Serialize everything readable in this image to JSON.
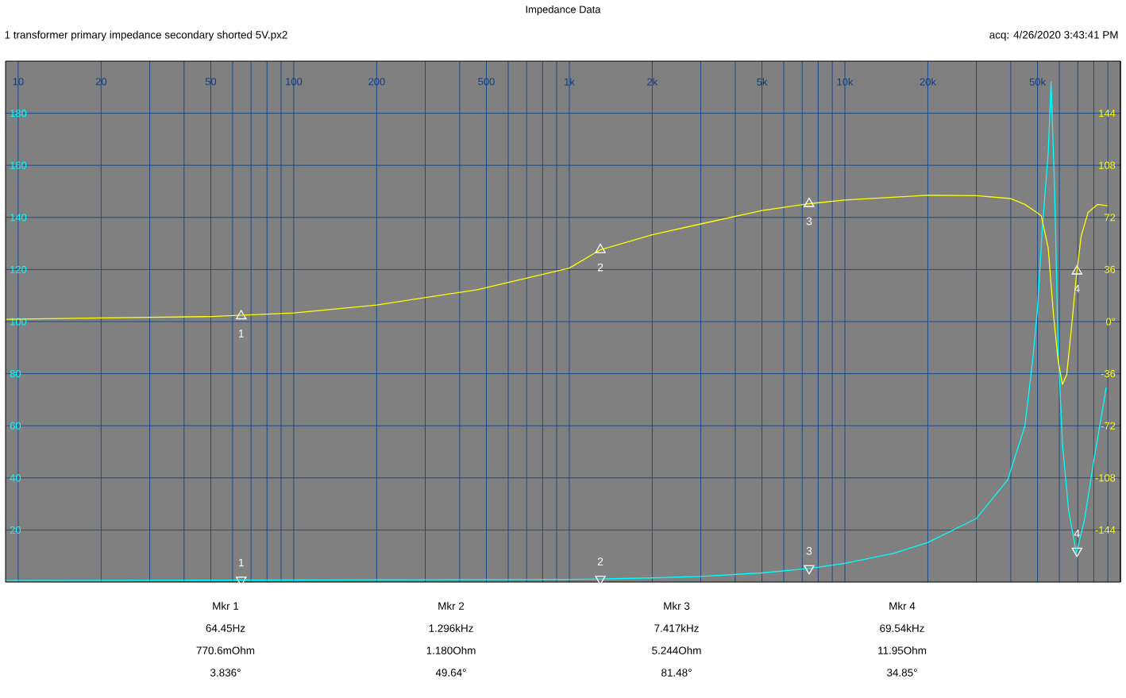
{
  "chart_data": {
    "type": "line",
    "title": "Impedance Data",
    "subtitle": "1 transformer primary impedance secondary shorted 5V.px2",
    "annotations": [
      "acq: 4/26/2020 3:43:41 PM",
      "Mkr 1",
      "64.45Hz",
      "770.6mOhm",
      "3.836°",
      "Mkr 2",
      "1.296kHz",
      "1.180Ohm",
      "49.64°",
      "Mkr 3",
      "7.417kHz",
      "5.244Ohm",
      "81.48°",
      "Mkr 4",
      "69.54kHz",
      "11.95Ohm",
      "34.85°",
      {
        "text": "1",
        "x": 64.45,
        "y": 0.7706
      },
      {
        "text": "2",
        "x": 1296,
        "y": 1.18
      },
      {
        "text": "3",
        "x": 7417,
        "y": 5.244
      },
      {
        "text": "4",
        "x": 69540,
        "y": 11.95
      },
      {
        "text": "1",
        "x": 64.45,
        "y": 102.13
      },
      {
        "text": "2",
        "x": 1296,
        "y": 127.58
      },
      {
        "text": "3",
        "x": 7417,
        "y": 145.27
      },
      {
        "text": "4",
        "x": 69540,
        "y": 119.36
      }
    ],
    "log": "x",
    "grid": true,
    "xlim": [
      9,
      100000
    ],
    "xticks": [
      {
        "value": 10,
        "label": "10"
      },
      {
        "value": 20,
        "label": "20"
      },
      {
        "value": 30,
        "label": null
      },
      {
        "value": 40,
        "label": null
      },
      {
        "value": 50,
        "label": "50"
      },
      {
        "value": 60,
        "label": null
      },
      {
        "value": 70,
        "label": null
      },
      {
        "value": 80,
        "label": null
      },
      {
        "value": 90,
        "label": null
      },
      {
        "value": 100,
        "label": "100"
      },
      {
        "value": 200,
        "label": "200"
      },
      {
        "value": 300,
        "label": null
      },
      {
        "value": 400,
        "label": null
      },
      {
        "value": 500,
        "label": "500"
      },
      {
        "value": 600,
        "label": null
      },
      {
        "value": 700,
        "label": null
      },
      {
        "value": 800,
        "label": null
      },
      {
        "value": 900,
        "label": null
      },
      {
        "value": 1000,
        "label": "1k"
      },
      {
        "value": 2000,
        "label": "2k"
      },
      {
        "value": 3000,
        "label": null
      },
      {
        "value": 4000,
        "label": null
      },
      {
        "value": 5000,
        "label": "5k"
      },
      {
        "value": 6000,
        "label": null
      },
      {
        "value": 7000,
        "label": null
      },
      {
        "value": 8000,
        "label": null
      },
      {
        "value": 9000,
        "label": null
      },
      {
        "value": 10000,
        "label": "10k"
      },
      {
        "value": 20000,
        "label": "20k"
      },
      {
        "value": 30000,
        "label": null
      },
      {
        "value": 40000,
        "label": null
      },
      {
        "value": 50000,
        "label": "50k"
      },
      {
        "value": 60000,
        "label": null
      },
      {
        "value": 70000,
        "label": null
      },
      {
        "value": 80000,
        "label": null
      },
      {
        "value": 90000,
        "label": null
      }
    ],
    "ylim": [
      0,
      200
    ],
    "yticks": [
      20,
      40,
      60,
      80,
      100,
      120,
      140,
      160,
      180
    ],
    "y2lim": [
      -180,
      180
    ],
    "y2ticks": [
      -144,
      -108,
      -72,
      -36,
      {
        "value": 0,
        "label": "0°"
      },
      36,
      72,
      108,
      144
    ],
    "series": [
      {
        "color": "#00ffff",
        "x": [
          9.05,
          20,
          50,
          100,
          200,
          500,
          1000,
          1296,
          2000,
          3000,
          5000,
          7417,
          10000,
          15000,
          20000,
          30000,
          39000,
          45000,
          48000,
          50000,
          52000,
          54700,
          56000,
          57700,
          59400,
          61600,
          64800,
          69200,
          74000,
          80000,
          88800
        ],
        "values": [
          0.6,
          0.65,
          0.75,
          0.8,
          0.85,
          0.95,
          1.05,
          1.18,
          1.6,
          2.2,
          3.5,
          5.244,
          7.2,
          11,
          15.2,
          24.4,
          39.3,
          60,
          85,
          105,
          135,
          165,
          192,
          150,
          90,
          53,
          27.6,
          11,
          23.8,
          46.6,
          74.7
        ]
      },
      {
        "color": "#ffff00",
        "axis": "y2",
        "x": [
          9.05,
          20,
          50,
          100,
          200,
          463,
          1000,
          1296,
          2000,
          3000,
          5000,
          7417,
          10000,
          20000,
          30000,
          40000,
          45000,
          50000,
          51600,
          54700,
          57000,
          59400,
          61600,
          63800,
          66400,
          69200,
          72000,
          76300,
          82600,
          89800
        ],
        "values": [
          1.6,
          2.5,
          3.5,
          6,
          11.5,
          22,
          37,
          49.64,
          60,
          67.5,
          76.8,
          81.48,
          84,
          87.3,
          87,
          85,
          81,
          75,
          73,
          50.5,
          7,
          -27,
          -43.4,
          -36.7,
          -4.4,
          31.8,
          59,
          75.5,
          81,
          80
        ]
      },
      {
        "type": "scatter",
        "color": "#ffffff",
        "marker": "triangle",
        "x": [
          64.45,
          1296,
          7417,
          69540
        ],
        "values": [
          0.7706,
          1.18,
          5.244,
          11.95
        ]
      },
      {
        "type": "scatter",
        "color": "#ffffff",
        "marker": "triangle",
        "axis": "y2",
        "x": [
          64.45,
          1296,
          7417,
          69540
        ],
        "values": [
          3.836,
          49.64,
          81.48,
          34.85
        ]
      }
    ]
  }
}
